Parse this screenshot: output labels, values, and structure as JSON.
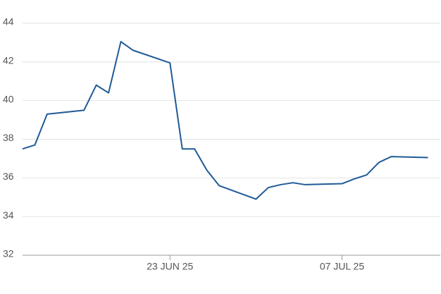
{
  "chart_data": {
    "type": "line",
    "x": [
      "2025-06-11",
      "2025-06-12",
      "2025-06-13",
      "2025-06-16",
      "2025-06-17",
      "2025-06-18",
      "2025-06-19",
      "2025-06-20",
      "2025-06-23",
      "2025-06-24",
      "2025-06-25",
      "2025-06-26",
      "2025-06-27",
      "2025-06-30",
      "2025-07-01",
      "2025-07-02",
      "2025-07-03",
      "2025-07-04",
      "2025-07-07",
      "2025-07-08",
      "2025-07-09",
      "2025-07-10",
      "2025-07-11",
      "2025-07-14"
    ],
    "values": [
      37.5,
      37.7,
      39.3,
      39.5,
      40.8,
      40.4,
      43.05,
      42.6,
      41.95,
      37.5,
      37.5,
      36.4,
      35.6,
      34.9,
      35.5,
      35.65,
      35.75,
      35.65,
      35.7,
      35.95,
      36.15,
      36.8,
      37.1,
      37.05
    ],
    "color": "#1f5a96",
    "xlim": [
      "2025-06-11",
      "2025-07-15"
    ],
    "xticks": [
      {
        "value": "2025-06-23",
        "label": "23 JUN 25"
      },
      {
        "value": "2025-07-07",
        "label": "07 JUL 25"
      }
    ],
    "ylim": [
      32,
      44
    ],
    "yticks": [
      32,
      34,
      36,
      38,
      40,
      42,
      44
    ],
    "grid": true
  }
}
